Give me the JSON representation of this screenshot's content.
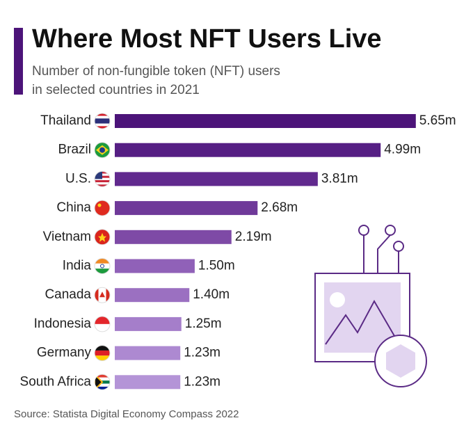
{
  "chart_data": {
    "type": "bar",
    "orientation": "horizontal",
    "title": "Where Most NFT Users Live",
    "subtitle": [
      "Number of non-fungible token (NFT) users",
      "in selected countries in 2021"
    ],
    "source": "Source: Statista Digital Economy Compass 2022",
    "categories": [
      "Thailand",
      "Brazil",
      "U.S.",
      "China",
      "Vietnam",
      "India",
      "Canada",
      "Indonesia",
      "Germany",
      "South Africa"
    ],
    "values": [
      5.65,
      4.99,
      3.81,
      2.68,
      2.19,
      1.5,
      1.4,
      1.25,
      1.23,
      1.23
    ],
    "value_labels": [
      "5.65m",
      "4.99m",
      "3.81m",
      "2.68m",
      "2.19m",
      "1.50m",
      "1.40m",
      "1.25m",
      "1.23m",
      "1.23m"
    ],
    "colors": [
      "#4c1479",
      "#561f84",
      "#61298e",
      "#6f3999",
      "#7e4aa6",
      "#9061b8",
      "#9b70c1",
      "#a57eca",
      "#ad89d1",
      "#b494d7"
    ]
  }
}
